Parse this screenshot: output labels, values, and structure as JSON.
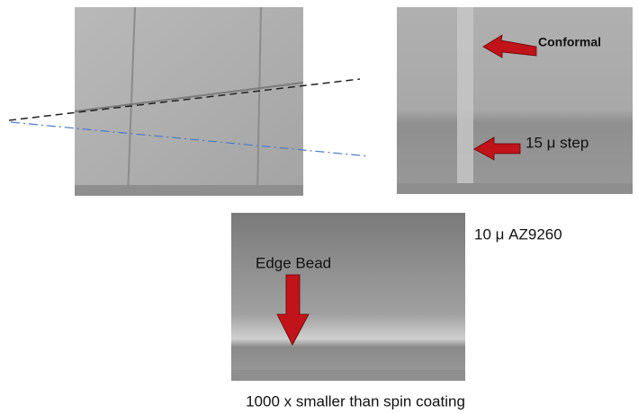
{
  "annotations": {
    "conformal": "Conformal",
    "step": "15 μ  step",
    "resist": "10 μ  AZ9260",
    "edge_bead": "Edge Bead"
  },
  "caption": "1000 x smaller than spin coating"
}
